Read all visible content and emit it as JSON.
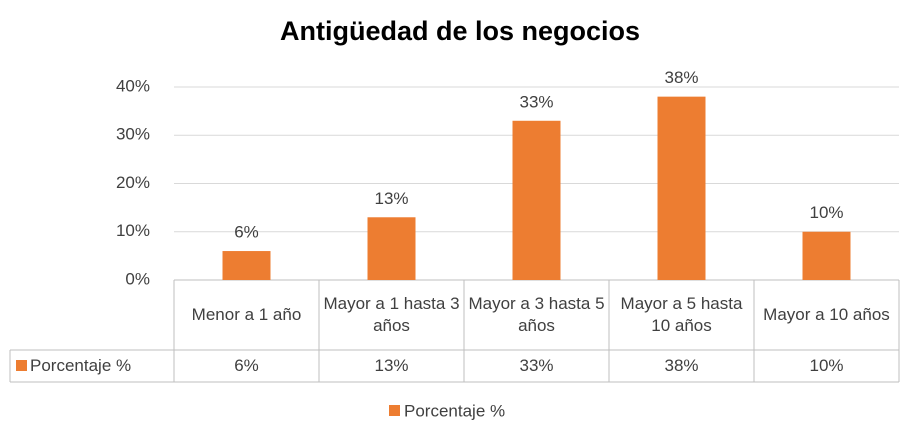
{
  "chart_data": {
    "type": "bar",
    "title": "Antigüedad de los negocios",
    "categories": [
      "Menor a 1 año",
      "Mayor a 1 hasta 3 años",
      "Mayor a 3 hasta 5 años",
      "Mayor a 5 hasta 10 años",
      "Mayor a 10 años"
    ],
    "series": [
      {
        "name": "Porcentaje %",
        "color": "#ed7d31",
        "values": [
          6,
          13,
          33,
          38,
          10
        ],
        "value_labels": [
          "6%",
          "13%",
          "33%",
          "38%",
          "10%"
        ]
      }
    ],
    "ylim": [
      0,
      40
    ],
    "yticks": [
      {
        "value": 0,
        "label": "0%"
      },
      {
        "value": 10,
        "label": "10%"
      },
      {
        "value": 20,
        "label": "20%"
      },
      {
        "value": 30,
        "label": "30%"
      },
      {
        "value": 40,
        "label": "40%"
      }
    ],
    "grid": true,
    "legend": "bottom",
    "data_table": true
  }
}
